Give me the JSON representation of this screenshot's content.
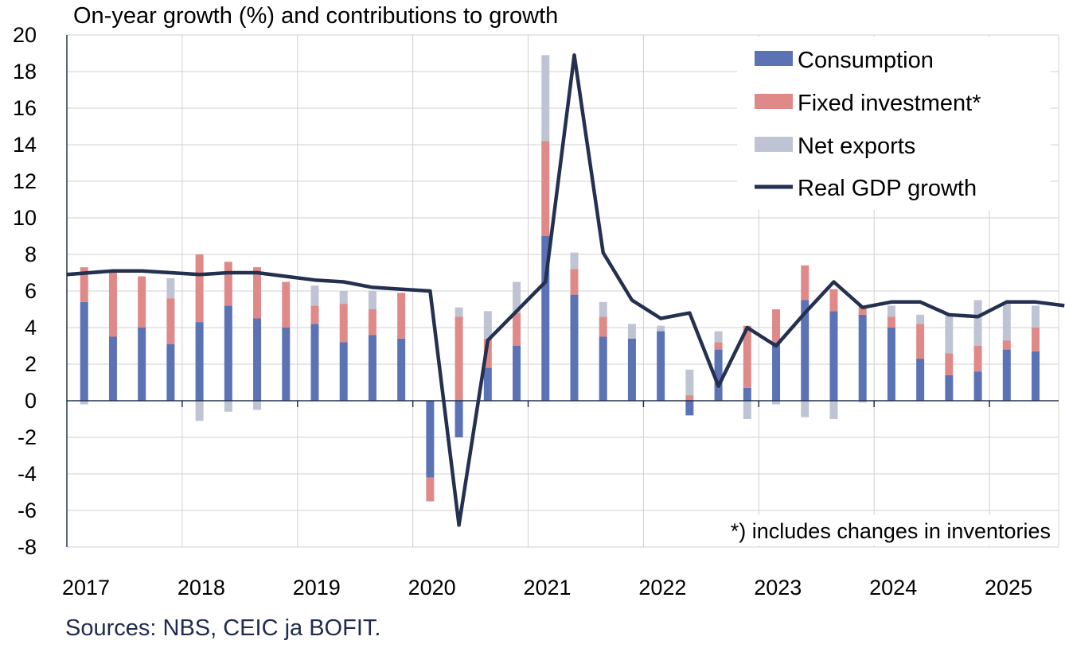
{
  "chart_data": {
    "type": "bar",
    "title": "On-year growth (%) and contributions to growth",
    "source": "Sources: NBS, CEIC ja BOFIT.",
    "footnote": "*) includes changes in inventories",
    "ylim": [
      -8,
      20
    ],
    "yticks": [
      -8,
      -6,
      -4,
      -2,
      0,
      2,
      4,
      6,
      8,
      10,
      12,
      14,
      16,
      18,
      20
    ],
    "years": [
      "2017",
      "2018",
      "2019",
      "2020",
      "2021",
      "2022",
      "2023",
      "2024",
      "2025"
    ],
    "legend_position": "top-right",
    "grid": true,
    "colors": {
      "consumption": "#5b73b4",
      "investment": "#df8a89",
      "net_exports": "#bfc4d4",
      "gdp": "#24304f",
      "grid": "#d0d0d0",
      "axis": "#24304f"
    },
    "categories": [
      "2017Q1",
      "2017Q2",
      "2017Q3",
      "2017Q4",
      "2018Q1",
      "2018Q2",
      "2018Q3",
      "2018Q4",
      "2019Q1",
      "2019Q2",
      "2019Q3",
      "2019Q4",
      "2020Q1",
      "2020Q2",
      "2020Q3",
      "2020Q4",
      "2021Q1",
      "2021Q2",
      "2021Q3",
      "2021Q4",
      "2022Q1",
      "2022Q2",
      "2022Q3",
      "2022Q4",
      "2023Q1",
      "2023Q2",
      "2023Q3",
      "2023Q4",
      "2024Q1",
      "2024Q2",
      "2024Q3",
      "2024Q4",
      "2025Q1",
      "2025Q2",
      "2025Q3"
    ],
    "series": [
      {
        "name": "Consumption",
        "type": "bar",
        "values": [
          5.4,
          3.5,
          4.0,
          3.1,
          4.3,
          5.2,
          4.5,
          4.0,
          4.2,
          3.2,
          3.6,
          3.4,
          -4.2,
          -2.0,
          1.8,
          3.0,
          9.0,
          5.8,
          3.5,
          3.4,
          3.8,
          -0.8,
          2.8,
          0.7,
          3.2,
          5.5,
          4.9,
          4.7,
          4.0,
          2.3,
          1.4,
          1.6,
          2.8,
          2.7,
          0
        ]
      },
      {
        "name": "Fixed investment*",
        "type": "bar",
        "values": [
          1.9,
          3.5,
          2.8,
          2.5,
          3.7,
          2.4,
          2.8,
          2.5,
          1.0,
          2.1,
          1.4,
          2.5,
          -1.3,
          4.6,
          1.6,
          1.8,
          5.2,
          1.4,
          1.1,
          0,
          0,
          0.3,
          0.4,
          3.4,
          1.8,
          1.9,
          1.2,
          0.5,
          0.6,
          1.9,
          1.2,
          1.4,
          0.5,
          1.3,
          0
        ]
      },
      {
        "name": "Net exports",
        "type": "bar",
        "values": [
          -0.2,
          0,
          0,
          1.1,
          -1.1,
          -0.6,
          -0.5,
          0,
          1.1,
          0.7,
          1.0,
          0,
          0,
          0.5,
          1.5,
          1.7,
          4.7,
          0.9,
          0.8,
          0.8,
          0.3,
          1.4,
          0.6,
          -1.0,
          -0.2,
          -0.9,
          -1.0,
          -0.1,
          0.6,
          0.5,
          2.1,
          2.5,
          2.0,
          1.2,
          0
        ]
      },
      {
        "name": "Real GDP growth",
        "type": "line",
        "values": [
          6.9,
          7.1,
          7.1,
          7.0,
          6.9,
          7.0,
          7.0,
          6.8,
          6.6,
          6.5,
          6.2,
          6.1,
          6.0,
          -6.8,
          3.3,
          4.9,
          6.5,
          18.9,
          8.1,
          5.5,
          4.5,
          4.8,
          0.8,
          4.0,
          3.0,
          4.8,
          6.5,
          5.1,
          5.4,
          5.4,
          4.7,
          4.6,
          5.4,
          5.4,
          5.2
        ]
      }
    ]
  }
}
